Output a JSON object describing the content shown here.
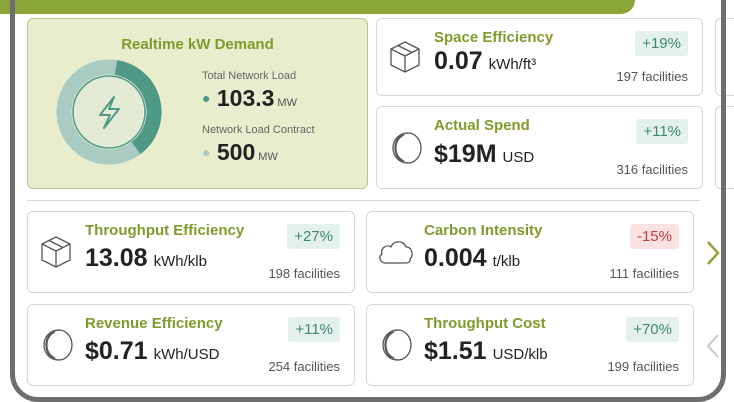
{
  "realtime": {
    "title": "Realtime kW Demand",
    "total_label": "Total Network Load",
    "total_value": "103.3",
    "total_unit": "MW",
    "contract_label": "Network Load Contract",
    "contract_value": "500",
    "contract_unit": "MW"
  },
  "metrics": [
    {
      "title": "Space Efficiency",
      "value": "0.07",
      "unit": "kWh/ft³",
      "change": "+19%",
      "facilities": "197 facilities"
    },
    {
      "title": "Actual Spend",
      "value": "$19M",
      "unit": "USD",
      "change": "+11%",
      "facilities": "316 facilities"
    },
    {
      "title": "Throughput Efficiency",
      "value": "13.08",
      "unit": "kWh/klb",
      "change": "+27%",
      "facilities": "198 facilities"
    },
    {
      "title": "Carbon Intensity",
      "value": "0.004",
      "unit": "t/klb",
      "change": "-15%",
      "facilities": "111 facilities"
    },
    {
      "title": "Revenue Efficiency",
      "value": "$0.71",
      "unit": "kWh/USD",
      "change": "+11%",
      "facilities": "254 facilities"
    },
    {
      "title": "Throughput Cost",
      "value": "$1.51",
      "unit": "USD/klb",
      "change": "+70%",
      "facilities": "199 facilities"
    }
  ]
}
